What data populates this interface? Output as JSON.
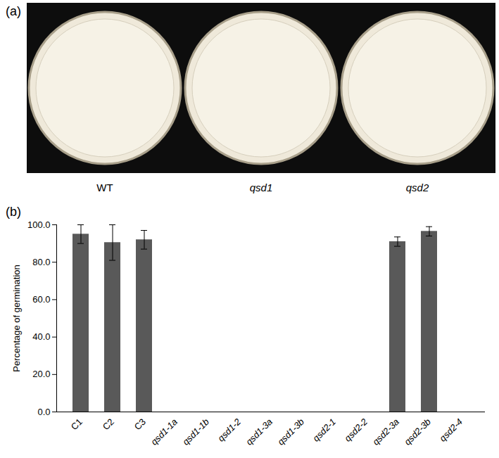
{
  "image_panel": {
    "label": "(a)",
    "dishes": [
      "WT",
      "qsd1",
      "qsd2"
    ]
  },
  "chart_data": {
    "type": "bar",
    "title": "(b)",
    "y_label": "Percentage of germination",
    "categories": [
      "C1",
      "C2",
      "C3",
      "qsd1-1a",
      "qsd1-1b",
      "qsd1-2",
      "qsd1-3a",
      "qsd1-3b",
      "qsd2-1",
      "qsd2-2",
      "qsd2-3a",
      "qsd2-3b",
      "qsd2-4"
    ],
    "values": [
      95,
      90.5,
      92,
      0,
      0,
      0,
      0,
      0,
      0,
      0,
      91,
      96.5,
      0
    ],
    "errors": [
      5,
      9.5,
      5,
      0,
      0,
      0,
      0,
      0,
      0,
      0,
      2.5,
      2.5,
      0
    ],
    "color": "#595959",
    "ylim": [
      0,
      100
    ],
    "yticks": [
      {
        "value": 0,
        "label": "0.0"
      },
      {
        "value": 20,
        "label": "20.0"
      },
      {
        "value": 40,
        "label": "40.0"
      },
      {
        "value": 60,
        "label": "60.0"
      },
      {
        "value": 80,
        "label": "80.0"
      },
      {
        "value": 100,
        "label": "100.0"
      }
    ],
    "grid": false
  }
}
